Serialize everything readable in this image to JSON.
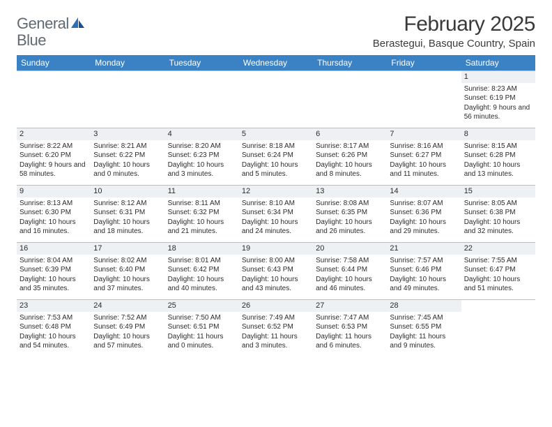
{
  "brand": {
    "word1": "General",
    "word2": "Blue"
  },
  "colors": {
    "header_bg": "#3b82c4",
    "header_text": "#ffffff",
    "border": "#b8c0c6",
    "daynum_bg": "#eef1f3",
    "body_text": "#2b2b2b",
    "logo_gray": "#5f6a72",
    "logo_blue": "#2d6fb6"
  },
  "title": "February 2025",
  "location": "Berastegui, Basque Country, Spain",
  "weekdays": [
    "Sunday",
    "Monday",
    "Tuesday",
    "Wednesday",
    "Thursday",
    "Friday",
    "Saturday"
  ],
  "days": [
    {
      "n": 1,
      "sunrise": "8:23 AM",
      "sunset": "6:19 PM",
      "daylight": "9 hours and 56 minutes."
    },
    {
      "n": 2,
      "sunrise": "8:22 AM",
      "sunset": "6:20 PM",
      "daylight": "9 hours and 58 minutes."
    },
    {
      "n": 3,
      "sunrise": "8:21 AM",
      "sunset": "6:22 PM",
      "daylight": "10 hours and 0 minutes."
    },
    {
      "n": 4,
      "sunrise": "8:20 AM",
      "sunset": "6:23 PM",
      "daylight": "10 hours and 3 minutes."
    },
    {
      "n": 5,
      "sunrise": "8:18 AM",
      "sunset": "6:24 PM",
      "daylight": "10 hours and 5 minutes."
    },
    {
      "n": 6,
      "sunrise": "8:17 AM",
      "sunset": "6:26 PM",
      "daylight": "10 hours and 8 minutes."
    },
    {
      "n": 7,
      "sunrise": "8:16 AM",
      "sunset": "6:27 PM",
      "daylight": "10 hours and 11 minutes."
    },
    {
      "n": 8,
      "sunrise": "8:15 AM",
      "sunset": "6:28 PM",
      "daylight": "10 hours and 13 minutes."
    },
    {
      "n": 9,
      "sunrise": "8:13 AM",
      "sunset": "6:30 PM",
      "daylight": "10 hours and 16 minutes."
    },
    {
      "n": 10,
      "sunrise": "8:12 AM",
      "sunset": "6:31 PM",
      "daylight": "10 hours and 18 minutes."
    },
    {
      "n": 11,
      "sunrise": "8:11 AM",
      "sunset": "6:32 PM",
      "daylight": "10 hours and 21 minutes."
    },
    {
      "n": 12,
      "sunrise": "8:10 AM",
      "sunset": "6:34 PM",
      "daylight": "10 hours and 24 minutes."
    },
    {
      "n": 13,
      "sunrise": "8:08 AM",
      "sunset": "6:35 PM",
      "daylight": "10 hours and 26 minutes."
    },
    {
      "n": 14,
      "sunrise": "8:07 AM",
      "sunset": "6:36 PM",
      "daylight": "10 hours and 29 minutes."
    },
    {
      "n": 15,
      "sunrise": "8:05 AM",
      "sunset": "6:38 PM",
      "daylight": "10 hours and 32 minutes."
    },
    {
      "n": 16,
      "sunrise": "8:04 AM",
      "sunset": "6:39 PM",
      "daylight": "10 hours and 35 minutes."
    },
    {
      "n": 17,
      "sunrise": "8:02 AM",
      "sunset": "6:40 PM",
      "daylight": "10 hours and 37 minutes."
    },
    {
      "n": 18,
      "sunrise": "8:01 AM",
      "sunset": "6:42 PM",
      "daylight": "10 hours and 40 minutes."
    },
    {
      "n": 19,
      "sunrise": "8:00 AM",
      "sunset": "6:43 PM",
      "daylight": "10 hours and 43 minutes."
    },
    {
      "n": 20,
      "sunrise": "7:58 AM",
      "sunset": "6:44 PM",
      "daylight": "10 hours and 46 minutes."
    },
    {
      "n": 21,
      "sunrise": "7:57 AM",
      "sunset": "6:46 PM",
      "daylight": "10 hours and 49 minutes."
    },
    {
      "n": 22,
      "sunrise": "7:55 AM",
      "sunset": "6:47 PM",
      "daylight": "10 hours and 51 minutes."
    },
    {
      "n": 23,
      "sunrise": "7:53 AM",
      "sunset": "6:48 PM",
      "daylight": "10 hours and 54 minutes."
    },
    {
      "n": 24,
      "sunrise": "7:52 AM",
      "sunset": "6:49 PM",
      "daylight": "10 hours and 57 minutes."
    },
    {
      "n": 25,
      "sunrise": "7:50 AM",
      "sunset": "6:51 PM",
      "daylight": "11 hours and 0 minutes."
    },
    {
      "n": 26,
      "sunrise": "7:49 AM",
      "sunset": "6:52 PM",
      "daylight": "11 hours and 3 minutes."
    },
    {
      "n": 27,
      "sunrise": "7:47 AM",
      "sunset": "6:53 PM",
      "daylight": "11 hours and 6 minutes."
    },
    {
      "n": 28,
      "sunrise": "7:45 AM",
      "sunset": "6:55 PM",
      "daylight": "11 hours and 9 minutes."
    }
  ],
  "layout": {
    "start_weekday_index": 6,
    "rows": 5,
    "cols": 7
  },
  "labels": {
    "sunrise": "Sunrise: ",
    "sunset": "Sunset: ",
    "daylight": "Daylight: "
  },
  "typography": {
    "month_title_fontsize": 30,
    "location_fontsize": 15,
    "weekday_header_fontsize": 12,
    "cell_fontsize": 10,
    "daynum_fontsize": 11
  }
}
